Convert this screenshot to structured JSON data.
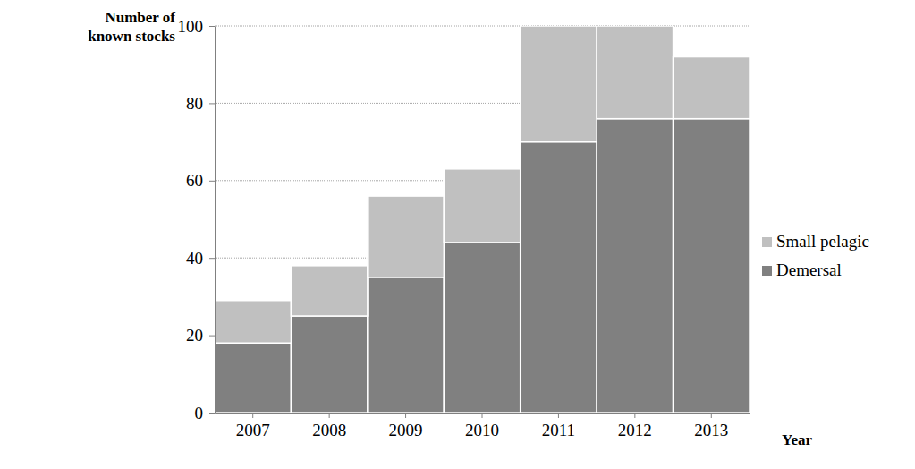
{
  "chart_data": {
    "type": "bar",
    "stacked": true,
    "grid": true,
    "legend": "right",
    "y_label": "Number of known stocks",
    "x_label": "Year",
    "categories": [
      "2007",
      "2008",
      "2009",
      "2010",
      "2011",
      "2012",
      "2013"
    ],
    "series": [
      {
        "name": "Demersal",
        "color": "#808080",
        "values": [
          18,
          25,
          35,
          44,
          70,
          76,
          76
        ]
      },
      {
        "name": "Small pelagic",
        "color": "#c0c0c0",
        "values": [
          11,
          13,
          21,
          19,
          30,
          24,
          16
        ]
      }
    ],
    "ylim": [
      0,
      100
    ],
    "yticks": [
      0,
      20,
      40,
      60,
      80,
      100
    ]
  }
}
